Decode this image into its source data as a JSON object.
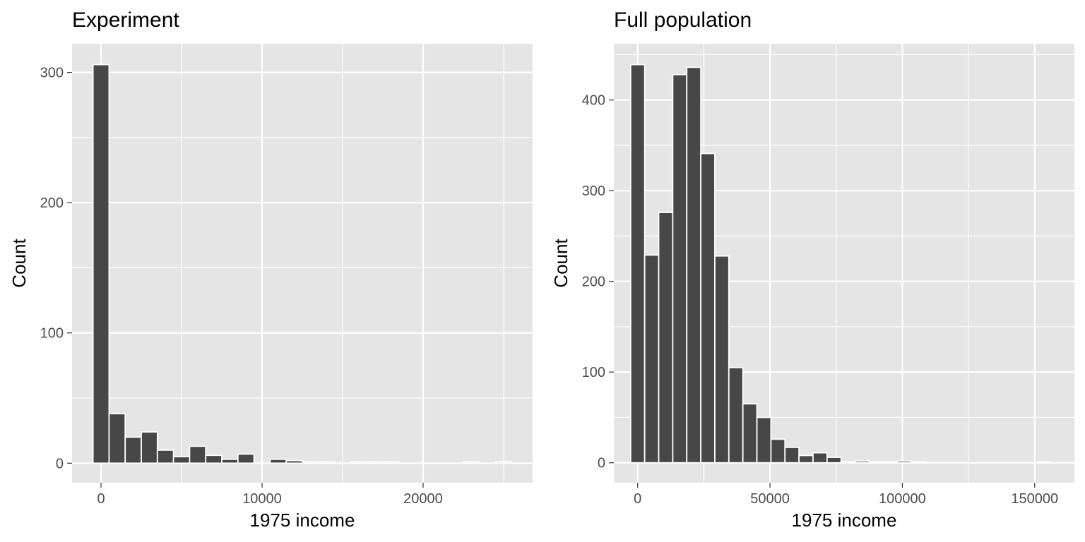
{
  "chart_data": [
    {
      "type": "bar",
      "title": "Experiment",
      "xlabel": "1975 income",
      "ylabel": "Count",
      "grid": true,
      "xlim": [
        -1800,
        26800
      ],
      "ylim": [
        -15,
        322
      ],
      "x_ticks": [
        0,
        10000,
        20000
      ],
      "x_tick_labels": [
        "0",
        "10000",
        "20000"
      ],
      "y_ticks": [
        0,
        100,
        200,
        300
      ],
      "y_tick_labels": [
        "0",
        "100",
        "200",
        "300"
      ],
      "bin_width": 1000,
      "bins": [
        {
          "x": 0,
          "count": 306
        },
        {
          "x": 1000,
          "count": 38
        },
        {
          "x": 2000,
          "count": 20
        },
        {
          "x": 3000,
          "count": 24
        },
        {
          "x": 4000,
          "count": 10
        },
        {
          "x": 5000,
          "count": 5
        },
        {
          "x": 6000,
          "count": 13
        },
        {
          "x": 7000,
          "count": 6
        },
        {
          "x": 8000,
          "count": 3
        },
        {
          "x": 9000,
          "count": 7
        },
        {
          "x": 10000,
          "count": 0
        },
        {
          "x": 11000,
          "count": 3
        },
        {
          "x": 12000,
          "count": 2
        },
        {
          "x": 13000,
          "count": 1
        },
        {
          "x": 14000,
          "count": 1
        },
        {
          "x": 15000,
          "count": 0
        },
        {
          "x": 16000,
          "count": 1
        },
        {
          "x": 17000,
          "count": 1
        },
        {
          "x": 18000,
          "count": 1
        },
        {
          "x": 19000,
          "count": 0
        },
        {
          "x": 20000,
          "count": 0
        },
        {
          "x": 21000,
          "count": 0
        },
        {
          "x": 22000,
          "count": 0
        },
        {
          "x": 23000,
          "count": 1
        },
        {
          "x": 24000,
          "count": 0
        },
        {
          "x": 25000,
          "count": 1
        }
      ]
    },
    {
      "type": "bar",
      "title": "Full population",
      "xlabel": "1975 income",
      "ylabel": "Count",
      "grid": true,
      "xlim": [
        -9000,
        165000
      ],
      "ylim": [
        -22,
        462
      ],
      "x_ticks": [
        0,
        50000,
        100000,
        150000
      ],
      "x_tick_labels": [
        "0",
        "50000",
        "100000",
        "150000"
      ],
      "y_ticks": [
        0,
        100,
        200,
        300,
        400
      ],
      "y_tick_labels": [
        "0",
        "100",
        "200",
        "300",
        "400"
      ],
      "bin_width": 5300,
      "bins": [
        {
          "x": 0,
          "count": 439
        },
        {
          "x": 5300,
          "count": 229
        },
        {
          "x": 10600,
          "count": 276
        },
        {
          "x": 15900,
          "count": 428
        },
        {
          "x": 21200,
          "count": 436
        },
        {
          "x": 26500,
          "count": 341
        },
        {
          "x": 31800,
          "count": 228
        },
        {
          "x": 37100,
          "count": 105
        },
        {
          "x": 42400,
          "count": 65
        },
        {
          "x": 47700,
          "count": 50
        },
        {
          "x": 53000,
          "count": 26
        },
        {
          "x": 58300,
          "count": 17
        },
        {
          "x": 63600,
          "count": 8
        },
        {
          "x": 68900,
          "count": 11
        },
        {
          "x": 74200,
          "count": 6
        },
        {
          "x": 79500,
          "count": 1
        },
        {
          "x": 84800,
          "count": 2
        },
        {
          "x": 90100,
          "count": 1
        },
        {
          "x": 95400,
          "count": 1
        },
        {
          "x": 100700,
          "count": 2
        },
        {
          "x": 106000,
          "count": 1
        },
        {
          "x": 111300,
          "count": 0
        },
        {
          "x": 116600,
          "count": 0
        },
        {
          "x": 121900,
          "count": 0
        },
        {
          "x": 127200,
          "count": 0
        },
        {
          "x": 132500,
          "count": 0
        },
        {
          "x": 137800,
          "count": 0
        },
        {
          "x": 143100,
          "count": 0
        },
        {
          "x": 148400,
          "count": 0
        },
        {
          "x": 153700,
          "count": 1
        }
      ]
    }
  ],
  "colors": {
    "panel_background": "#e5e5e5",
    "grid": "#ffffff",
    "bar_fill": "#474747",
    "bar_outline": "#ffffff",
    "tick_label": "#4d4d4d",
    "text": "#000000"
  }
}
